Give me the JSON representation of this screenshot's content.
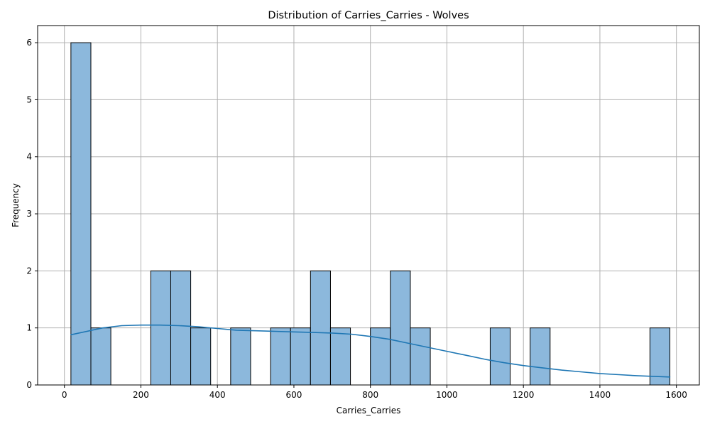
{
  "chart_data": {
    "type": "bar",
    "title": "Distribution of Carries_Carries - Wolves",
    "xlabel": "Carries_Carries",
    "ylabel": "Frequency",
    "xlim": [
      -70,
      1660
    ],
    "ylim": [
      0,
      6.3
    ],
    "grid": true,
    "bin_width": 52.2,
    "bins": [
      {
        "start": 17.0,
        "end": 69.2,
        "count": 6
      },
      {
        "start": 69.2,
        "end": 121.4,
        "count": 1
      },
      {
        "start": 121.4,
        "end": 173.6,
        "count": 0
      },
      {
        "start": 173.6,
        "end": 225.8,
        "count": 0
      },
      {
        "start": 225.8,
        "end": 278.0,
        "count": 2
      },
      {
        "start": 278.0,
        "end": 330.2,
        "count": 2
      },
      {
        "start": 330.2,
        "end": 382.4,
        "count": 1
      },
      {
        "start": 382.4,
        "end": 434.6,
        "count": 0
      },
      {
        "start": 434.6,
        "end": 486.8,
        "count": 1
      },
      {
        "start": 486.8,
        "end": 539.0,
        "count": 0
      },
      {
        "start": 539.0,
        "end": 591.2,
        "count": 1
      },
      {
        "start": 591.2,
        "end": 643.4,
        "count": 1
      },
      {
        "start": 643.4,
        "end": 695.6,
        "count": 2
      },
      {
        "start": 695.6,
        "end": 747.8,
        "count": 1
      },
      {
        "start": 747.8,
        "end": 800.0,
        "count": 0
      },
      {
        "start": 800.0,
        "end": 852.2,
        "count": 1
      },
      {
        "start": 852.2,
        "end": 904.4,
        "count": 2
      },
      {
        "start": 904.4,
        "end": 956.6,
        "count": 1
      },
      {
        "start": 956.6,
        "end": 1008.8,
        "count": 0
      },
      {
        "start": 1008.8,
        "end": 1061.0,
        "count": 0
      },
      {
        "start": 1061.0,
        "end": 1113.2,
        "count": 0
      },
      {
        "start": 1113.2,
        "end": 1165.4,
        "count": 1
      },
      {
        "start": 1165.4,
        "end": 1217.6,
        "count": 0
      },
      {
        "start": 1217.6,
        "end": 1269.8,
        "count": 1
      },
      {
        "start": 1269.8,
        "end": 1322.0,
        "count": 0
      },
      {
        "start": 1322.0,
        "end": 1374.2,
        "count": 0
      },
      {
        "start": 1374.2,
        "end": 1426.4,
        "count": 0
      },
      {
        "start": 1426.4,
        "end": 1478.6,
        "count": 0
      },
      {
        "start": 1478.6,
        "end": 1530.8,
        "count": 0
      },
      {
        "start": 1530.8,
        "end": 1583.0,
        "count": 1
      }
    ],
    "kde": {
      "x": [
        17,
        100,
        150,
        200,
        250,
        300,
        350,
        400,
        450,
        500,
        550,
        600,
        650,
        700,
        750,
        800,
        850,
        900,
        950,
        1000,
        1050,
        1100,
        1150,
        1200,
        1250,
        1300,
        1350,
        1400,
        1450,
        1500,
        1583
      ],
      "y": [
        0.88,
        1.0,
        1.04,
        1.05,
        1.05,
        1.04,
        1.02,
        0.99,
        0.96,
        0.95,
        0.94,
        0.93,
        0.92,
        0.91,
        0.89,
        0.85,
        0.8,
        0.73,
        0.66,
        0.59,
        0.52,
        0.45,
        0.39,
        0.34,
        0.3,
        0.26,
        0.23,
        0.2,
        0.18,
        0.16,
        0.14
      ]
    },
    "x_ticks": [
      0,
      200,
      400,
      600,
      800,
      1000,
      1200,
      1400,
      1600
    ],
    "y_ticks": [
      0,
      1,
      2,
      3,
      4,
      5,
      6
    ],
    "colors": {
      "bar_fill": "#8cb8dc",
      "bar_edge": "#000000",
      "kde_line": "#1f77b4",
      "grid": "#b0b0b0"
    }
  }
}
